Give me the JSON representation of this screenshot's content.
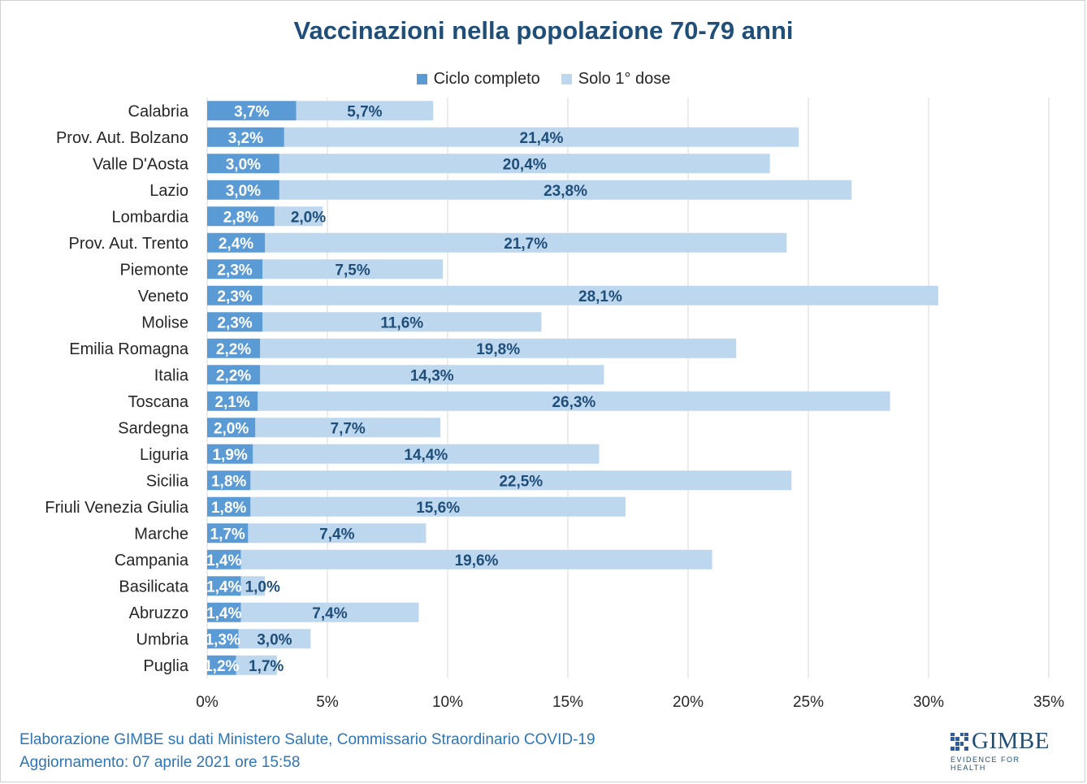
{
  "title": "Vaccinazioni nella popolazione 70-79 anni",
  "chart_data": {
    "type": "bar",
    "orientation": "horizontal",
    "stacked": true,
    "categories": [
      "Calabria",
      "Prov. Aut. Bolzano",
      "Valle D'Aosta",
      "Lazio",
      "Lombardia",
      "Prov. Aut. Trento",
      "Piemonte",
      "Veneto",
      "Molise",
      "Emilia Romagna",
      "Italia",
      "Toscana",
      "Sardegna",
      "Liguria",
      "Sicilia",
      "Friuli Venezia Giulia",
      "Marche",
      "Campania",
      "Basilicata",
      "Abruzzo",
      "Umbria",
      "Puglia"
    ],
    "series": [
      {
        "name": "Ciclo completo",
        "color": "#5b9bd5",
        "values": [
          3.7,
          3.2,
          3.0,
          3.0,
          2.8,
          2.4,
          2.3,
          2.3,
          2.3,
          2.2,
          2.2,
          2.1,
          2.0,
          1.9,
          1.8,
          1.8,
          1.7,
          1.4,
          1.4,
          1.4,
          1.3,
          1.2
        ],
        "labels": [
          "3,7%",
          "3,2%",
          "3,0%",
          "3,0%",
          "2,8%",
          "2,4%",
          "2,3%",
          "2,3%",
          "2,3%",
          "2,2%",
          "2,2%",
          "2,1%",
          "2,0%",
          "1,9%",
          "1,8%",
          "1,8%",
          "1,7%",
          "1,4%",
          "1,4%",
          "1,4%",
          "1,3%",
          "1,2%"
        ]
      },
      {
        "name": "Solo 1° dose",
        "color": "#bdd7ee",
        "values": [
          5.7,
          21.4,
          20.4,
          23.8,
          2.0,
          21.7,
          7.5,
          28.1,
          11.6,
          19.8,
          14.3,
          26.3,
          7.7,
          14.4,
          22.5,
          15.6,
          7.4,
          19.6,
          1.0,
          7.4,
          3.0,
          1.7
        ],
        "labels": [
          "5,7%",
          "21,4%",
          "20,4%",
          "23,8%",
          "2,0%",
          "21,7%",
          "7,5%",
          "28,1%",
          "11,6%",
          "19,8%",
          "14,3%",
          "26,3%",
          "7,7%",
          "14,4%",
          "22,5%",
          "15,6%",
          "7,4%",
          "19,6%",
          "1,0%",
          "7,4%",
          "3,0%",
          "1,7%"
        ]
      }
    ],
    "xlim": [
      0,
      35
    ],
    "xticks": [
      0,
      5,
      10,
      15,
      20,
      25,
      30,
      35
    ],
    "xtick_labels": [
      "0%",
      "5%",
      "10%",
      "15%",
      "20%",
      "25%",
      "30%",
      "35%"
    ],
    "grid": true,
    "legend_position": "top"
  },
  "footer": {
    "line1": "Elaborazione GIMBE su dati Ministero Salute, Commissario Straordinario COVID-19",
    "line2": "Aggiornamento: 07 aprile 2021 ore 15:58"
  },
  "logo": {
    "name": "GIMBE",
    "tagline": "EVIDENCE FOR HEALTH"
  }
}
